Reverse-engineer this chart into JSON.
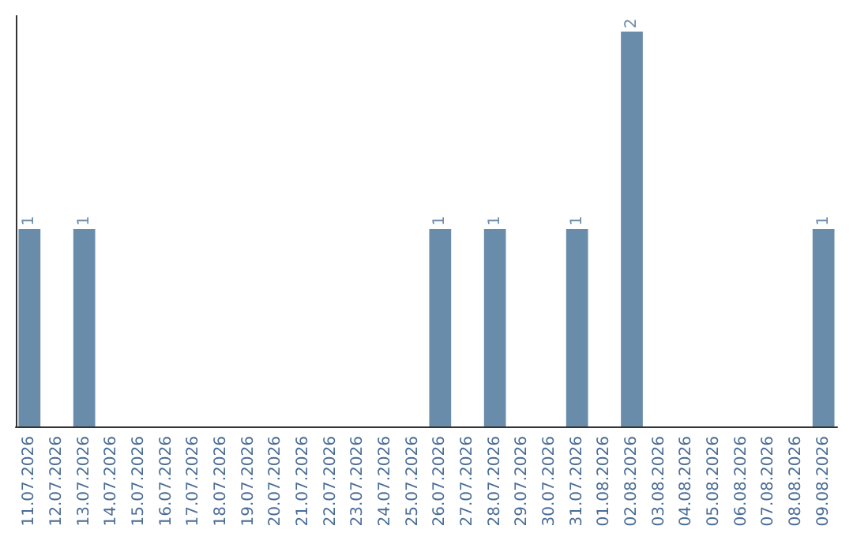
{
  "chart_data": {
    "type": "bar",
    "categories": [
      "11.07.2026",
      "12.07.2026",
      "13.07.2026",
      "14.07.2026",
      "15.07.2026",
      "16.07.2026",
      "17.07.2026",
      "18.07.2026",
      "19.07.2026",
      "20.07.2026",
      "21.07.2026",
      "22.07.2026",
      "23.07.2026",
      "24.07.2026",
      "25.07.2026",
      "26.07.2026",
      "27.07.2026",
      "28.07.2026",
      "29.07.2026",
      "30.07.2026",
      "31.07.2026",
      "01.08.2026",
      "02.08.2026",
      "03.08.2026",
      "04.08.2026",
      "05.08.2026",
      "06.08.2026",
      "07.08.2026",
      "08.08.2026",
      "09.08.2026"
    ],
    "values": [
      1,
      0,
      1,
      0,
      0,
      0,
      0,
      0,
      0,
      0,
      0,
      0,
      0,
      0,
      0,
      1,
      0,
      1,
      0,
      0,
      1,
      0,
      2,
      0,
      0,
      0,
      0,
      0,
      0,
      1
    ],
    "value_labels": [
      "1",
      null,
      "1",
      null,
      null,
      null,
      null,
      null,
      null,
      null,
      null,
      null,
      null,
      null,
      null,
      "1",
      null,
      "1",
      null,
      null,
      "1",
      null,
      "2",
      null,
      null,
      null,
      null,
      null,
      null,
      "1"
    ],
    "color": "#6a8cab",
    "tick_labels": "x"
  }
}
